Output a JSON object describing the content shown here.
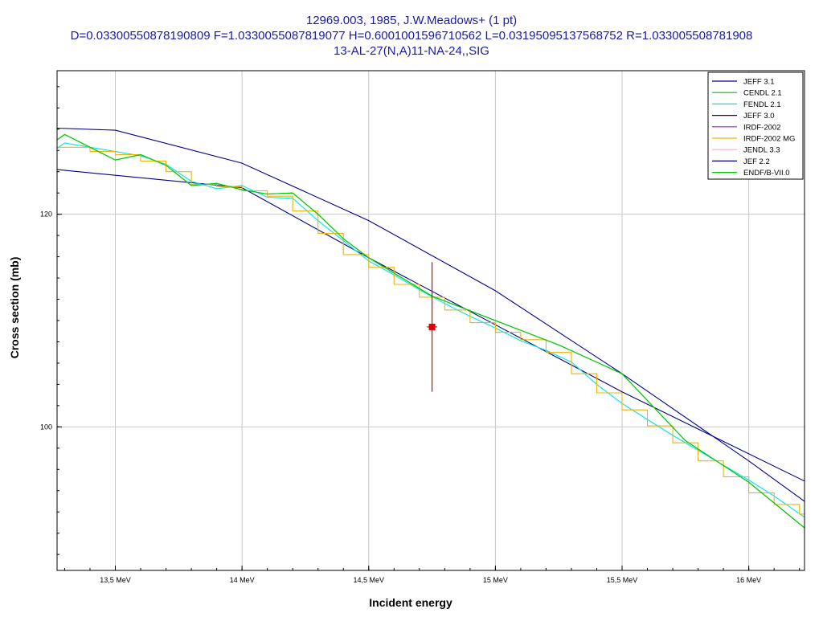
{
  "chart_data": {
    "type": "line",
    "title_lines": [
      "12969.003, 1985, J.W.Meadows+ (1 pt)",
      "D=0.03300550878190809 F=1.0330055087819077 H=0.6001001596710562 L=0.03195095137568752 R=1.033005508781908",
      "13-AL-27(N,A)11-NA-24,,SIG"
    ],
    "xlabel": "Incident energy",
    "ylabel": "Cross section (mb)",
    "xlim": [
      13.27,
      16.22
    ],
    "ylim": [
      86.5,
      133.5
    ],
    "grid": true,
    "legend_position": "top-right",
    "x_ticks": [
      {
        "value": 13.5,
        "label": "13,5 MeV"
      },
      {
        "value": 14.0,
        "label": "14 MeV"
      },
      {
        "value": 14.5,
        "label": "14,5 MeV"
      },
      {
        "value": 15.0,
        "label": "15 MeV"
      },
      {
        "value": 15.5,
        "label": "15,5 MeV"
      },
      {
        "value": 16.0,
        "label": "16 MeV"
      }
    ],
    "y_ticks": [
      {
        "value": 100,
        "label": "100"
      },
      {
        "value": 120,
        "label": "120"
      }
    ],
    "series": [
      {
        "name": "JEFF 3.1",
        "color": "#00008b",
        "style": "line",
        "x": [
          13.27,
          14.0,
          14.5,
          15.0,
          15.5,
          16.22
        ],
        "y": [
          124.2,
          122.5,
          115.9,
          109.6,
          103.3,
          94.9
        ]
      },
      {
        "name": "CENDL 2.1",
        "color": "#00c800",
        "style": "line",
        "x": [
          13.27,
          13.3,
          13.5,
          13.6,
          13.7,
          13.8,
          13.9,
          14.0,
          14.1,
          14.2,
          14.3,
          14.4,
          14.5,
          14.75,
          15.0,
          15.25,
          15.5,
          15.75,
          16.0,
          16.22
        ],
        "y": [
          127.0,
          127.5,
          125.1,
          125.6,
          124.6,
          122.7,
          122.9,
          122.3,
          121.9,
          122.0,
          120.0,
          117.7,
          115.9,
          112.3,
          110.0,
          107.7,
          105.0,
          98.7,
          94.8,
          90.5
        ]
      },
      {
        "name": "FENDL 2.1",
        "color": "#00e5ee",
        "style": "line",
        "x": [
          13.27,
          13.3,
          13.5,
          13.6,
          13.7,
          13.8,
          13.9,
          14.0,
          14.1,
          14.2,
          14.3,
          14.4,
          14.5,
          14.6,
          14.7,
          14.8,
          14.9,
          15.0,
          15.1,
          15.2,
          15.3,
          15.4,
          15.5,
          15.6,
          15.7,
          15.8,
          15.9,
          16.0,
          16.1,
          16.22
        ],
        "y": [
          126.2,
          126.7,
          125.9,
          125.5,
          124.7,
          123.1,
          122.4,
          122.7,
          121.6,
          121.5,
          119.4,
          117.5,
          115.6,
          114.3,
          112.9,
          111.6,
          110.4,
          109.3,
          108.1,
          107.2,
          106.1,
          104.0,
          102.2,
          100.7,
          99.2,
          97.8,
          96.4,
          95.0,
          93.5,
          91.5
        ]
      },
      {
        "name": "JEFF 3.0",
        "color": "#330033",
        "style": "line",
        "x": [],
        "y": []
      },
      {
        "name": "IRDF-2002",
        "color": "#a020c0",
        "style": "line",
        "x": [],
        "y": []
      },
      {
        "name": "IRDF-2002 MG",
        "color": "#f0b400",
        "style": "step",
        "edges": [
          13.27,
          13.4,
          13.5,
          13.6,
          13.7,
          13.8,
          13.9,
          14.0,
          14.1,
          14.2,
          14.3,
          14.4,
          14.5,
          14.6,
          14.7,
          14.8,
          14.9,
          15.0,
          15.1,
          15.2,
          15.3,
          15.4,
          15.5,
          15.6,
          15.7,
          15.8,
          15.9,
          16.0,
          16.1,
          16.2,
          16.22
        ],
        "y": [
          126.3,
          125.9,
          125.6,
          125.0,
          124.0,
          122.8,
          122.6,
          122.2,
          121.7,
          120.3,
          118.2,
          116.2,
          115.0,
          113.4,
          112.2,
          111.0,
          109.8,
          108.9,
          108.2,
          107.0,
          105.0,
          103.2,
          101.6,
          100.1,
          98.5,
          96.8,
          95.3,
          93.8,
          92.7,
          91.8
        ]
      },
      {
        "name": "JENDL 3.3",
        "color": "#f4b6c2",
        "style": "line",
        "x": [],
        "y": []
      },
      {
        "name": "JEF 2.2",
        "color": "#00008b",
        "style": "line",
        "x": [
          13.27,
          13.5,
          14.0,
          14.5,
          15.0,
          15.5,
          16.0,
          16.22
        ],
        "y": [
          128.1,
          127.9,
          124.8,
          119.4,
          112.8,
          105.0,
          96.8,
          93.0
        ]
      },
      {
        "name": "ENDF/B-VII.0",
        "color": "#00c800",
        "style": "line",
        "x": [
          13.27,
          13.3,
          13.5,
          13.6,
          13.7,
          13.8,
          13.9,
          14.0,
          14.1,
          14.2,
          14.3,
          14.4,
          14.5,
          14.75,
          15.0,
          15.25,
          15.5,
          15.75,
          16.0,
          16.22
        ],
        "y": [
          127.0,
          127.5,
          125.1,
          125.6,
          124.6,
          122.7,
          122.9,
          122.3,
          121.9,
          122.0,
          120.0,
          117.7,
          115.9,
          112.3,
          110.0,
          107.7,
          105.0,
          98.7,
          94.8,
          90.5
        ]
      }
    ],
    "data_points": [
      {
        "x": 14.75,
        "y": 109.4,
        "x_err": 0.02,
        "y_err": 6.1,
        "color": "#e00000"
      }
    ]
  }
}
